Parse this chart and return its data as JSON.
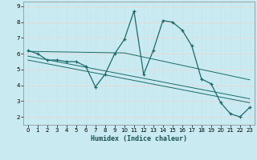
{
  "xlabel": "Humidex (Indice chaleur)",
  "xlim": [
    -0.5,
    23.5
  ],
  "ylim": [
    1.5,
    9.3
  ],
  "yticks": [
    2,
    3,
    4,
    5,
    6,
    7,
    8,
    9
  ],
  "xticks": [
    0,
    1,
    2,
    3,
    4,
    5,
    6,
    7,
    8,
    9,
    10,
    11,
    12,
    13,
    14,
    15,
    16,
    17,
    18,
    19,
    20,
    21,
    22,
    23
  ],
  "bg_color": "#c8eaf0",
  "grid_color": "#e8d8d8",
  "line_color": "#1a6b6b",
  "line1_x": [
    0,
    1,
    2,
    3,
    4,
    5,
    6,
    7,
    8,
    9,
    10,
    11,
    12,
    13,
    14,
    15,
    16,
    17,
    18,
    19,
    20,
    21,
    22,
    23
  ],
  "line1_y": [
    6.2,
    6.0,
    5.6,
    5.6,
    5.5,
    5.5,
    5.2,
    3.9,
    4.7,
    6.0,
    6.9,
    8.7,
    4.7,
    6.2,
    8.1,
    8.0,
    7.5,
    6.5,
    4.4,
    4.1,
    2.9,
    2.2,
    2.0,
    2.6
  ],
  "line2_x": [
    0,
    10,
    23
  ],
  "line2_y": [
    6.15,
    6.05,
    4.35
  ],
  "line3_x": [
    0,
    23
  ],
  "line3_y": [
    5.85,
    3.15
  ],
  "line4_x": [
    0,
    23
  ],
  "line4_y": [
    5.6,
    2.9
  ]
}
